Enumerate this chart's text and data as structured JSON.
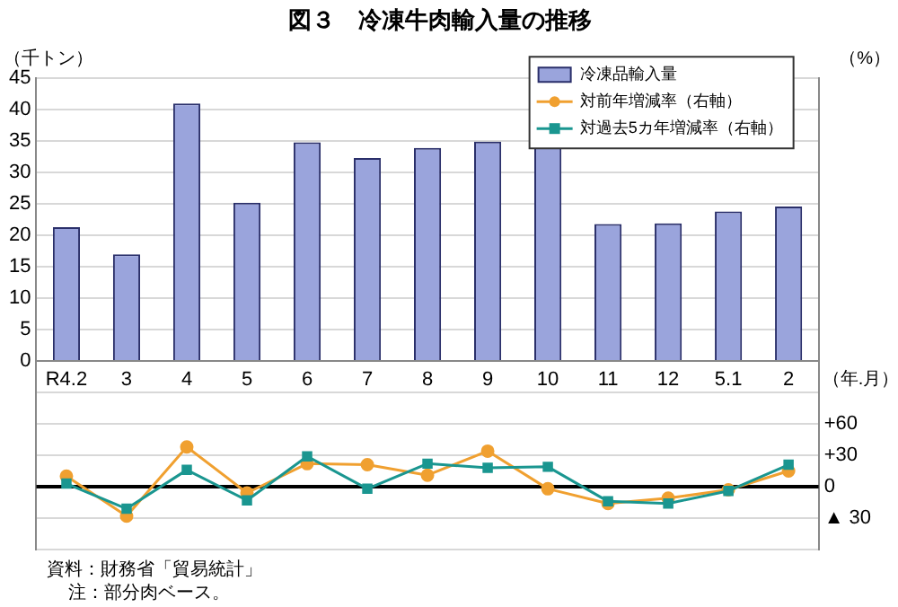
{
  "chart_data": {
    "type": "bar",
    "title": "図３　冷凍牛肉輸入量の推移",
    "xlabel": "（年.月）",
    "ylabel": "（千トン）",
    "y2label": "（%）",
    "categories": [
      "R4.2",
      "3",
      "4",
      "5",
      "6",
      "7",
      "8",
      "9",
      "10",
      "11",
      "12",
      "5.1",
      "2"
    ],
    "series": [
      {
        "name": "冷凍品輸入量",
        "color": "#9aa4dc",
        "values": [
          21.3,
          17,
          41,
          25.2,
          34.8,
          32.3,
          33.9,
          34.9,
          34.1,
          21.8,
          21.9,
          23.8,
          24.6
        ]
      },
      {
        "name": "対前年増減率（右軸）",
        "type": "line",
        "axis": "y2",
        "color": "#f0a030",
        "marker": "circle",
        "values": [
          10,
          -28,
          38,
          -6,
          22,
          21,
          11,
          34,
          -2,
          -16,
          -11,
          -3,
          15
        ]
      },
      {
        "name": "対過去5カ年増減率（右軸）",
        "type": "line",
        "axis": "y2",
        "color": "#1a9690",
        "marker": "square",
        "values": [
          3,
          -21,
          16,
          -13,
          29,
          -2,
          22,
          18,
          19,
          -14,
          -16,
          -4,
          21
        ]
      }
    ],
    "ylim": [
      -30,
      45
    ],
    "yticks": [
      0,
      5,
      10,
      15,
      20,
      25,
      30,
      35,
      40,
      45
    ],
    "y2lim": [
      -60,
      390
    ],
    "y2ticks": [
      {
        "value": -60,
        "label": null
      },
      {
        "value": -30,
        "label": "▲ 30"
      },
      {
        "value": 0,
        "label": "0"
      },
      {
        "value": 30,
        "label": "+30"
      },
      {
        "value": 60,
        "label": "+60"
      },
      {
        "value": 90,
        "label": null
      }
    ],
    "ref_lines": [
      {
        "axis": "y2",
        "value": 0,
        "color": "#000000"
      }
    ],
    "grid": true,
    "legend": "top right",
    "annotations": [
      "資料：財務省「貿易統計」",
      "注：部分肉ベース。"
    ]
  }
}
